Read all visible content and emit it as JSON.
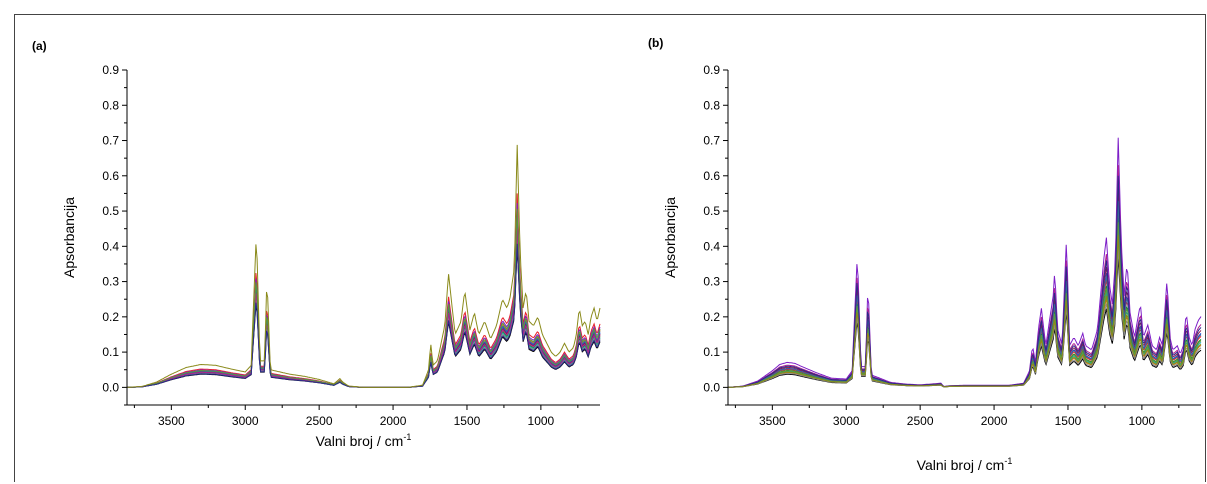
{
  "chart_data": [
    {
      "type": "line",
      "panel_label": "(a)",
      "xlabel": "Valni broj / cm",
      "xlabel_sup": "-1",
      "ylabel": "Apsorbancija",
      "xlim": [
        3800,
        600
      ],
      "ylim": [
        -0.05,
        0.9
      ],
      "x_reversed": true,
      "xticks": [
        3500,
        3000,
        2500,
        2000,
        1500,
        1000
      ],
      "yticks": [
        0.0,
        0.1,
        0.2,
        0.3,
        0.4,
        0.5,
        0.6,
        0.7,
        0.8,
        0.9
      ],
      "ytick_labels": [
        "0.0",
        "0.1",
        "0.2",
        "0.3",
        "0.4",
        "0.5",
        "0.6",
        "0.7",
        "0.8",
        "0.9"
      ],
      "grid": false,
      "legend": "none",
      "series_count": 14,
      "series_colors": [
        "#000000",
        "#e8202a",
        "#1f3fd0",
        "#1a8a2a",
        "#7d1ec8",
        "#1aa7a7",
        "#d07a1a",
        "#8a1a4a",
        "#3a6a9a",
        "#8a8a8a",
        "#b02090",
        "#5a9a3a",
        "#2a2a8a",
        "#8a8a1a"
      ],
      "series_scales": [
        0.72,
        1.0,
        0.86,
        0.8,
        0.95,
        0.78,
        0.9,
        0.84,
        0.88,
        0.76,
        0.82,
        0.92,
        0.74,
        1.25
      ],
      "spectrum": [
        [
          3800,
          0.0
        ],
        [
          3700,
          0.002
        ],
        [
          3600,
          0.012
        ],
        [
          3500,
          0.03
        ],
        [
          3400,
          0.045
        ],
        [
          3300,
          0.052
        ],
        [
          3200,
          0.05
        ],
        [
          3100,
          0.042
        ],
        [
          3000,
          0.035
        ],
        [
          2960,
          0.05
        ],
        [
          2925,
          0.35
        ],
        [
          2900,
          0.06
        ],
        [
          2870,
          0.06
        ],
        [
          2853,
          0.25
        ],
        [
          2830,
          0.04
        ],
        [
          2700,
          0.03
        ],
        [
          2600,
          0.025
        ],
        [
          2500,
          0.018
        ],
        [
          2400,
          0.008
        ],
        [
          2360,
          0.02
        ],
        [
          2340,
          0.012
        ],
        [
          2300,
          0.003
        ],
        [
          2200,
          0.0
        ],
        [
          2000,
          0.0
        ],
        [
          1900,
          0.0
        ],
        [
          1800,
          0.005
        ],
        [
          1760,
          0.04
        ],
        [
          1745,
          0.1
        ],
        [
          1730,
          0.05
        ],
        [
          1700,
          0.06
        ],
        [
          1650,
          0.14
        ],
        [
          1625,
          0.26
        ],
        [
          1600,
          0.18
        ],
        [
          1580,
          0.12
        ],
        [
          1540,
          0.15
        ],
        [
          1515,
          0.22
        ],
        [
          1480,
          0.13
        ],
        [
          1450,
          0.17
        ],
        [
          1420,
          0.12
        ],
        [
          1380,
          0.15
        ],
        [
          1340,
          0.11
        ],
        [
          1300,
          0.14
        ],
        [
          1260,
          0.2
        ],
        [
          1230,
          0.18
        ],
        [
          1210,
          0.2
        ],
        [
          1180,
          0.27
        ],
        [
          1160,
          0.55
        ],
        [
          1140,
          0.3
        ],
        [
          1120,
          0.18
        ],
        [
          1100,
          0.22
        ],
        [
          1080,
          0.15
        ],
        [
          1050,
          0.14
        ],
        [
          1020,
          0.16
        ],
        [
          990,
          0.12
        ],
        [
          960,
          0.1
        ],
        [
          930,
          0.08
        ],
        [
          900,
          0.07
        ],
        [
          870,
          0.08
        ],
        [
          840,
          0.1
        ],
        [
          810,
          0.08
        ],
        [
          780,
          0.09
        ],
        [
          760,
          0.12
        ],
        [
          740,
          0.18
        ],
        [
          720,
          0.14
        ],
        [
          700,
          0.15
        ],
        [
          680,
          0.12
        ],
        [
          660,
          0.16
        ],
        [
          640,
          0.18
        ],
        [
          620,
          0.15
        ],
        [
          600,
          0.18
        ]
      ]
    },
    {
      "type": "line",
      "panel_label": "(b)",
      "xlabel": "Valni broj / cm",
      "xlabel_sup": "-1",
      "ylabel": "Apsorbancija",
      "xlim": [
        3800,
        600
      ],
      "ylim": [
        -0.05,
        0.9
      ],
      "x_reversed": true,
      "xticks": [
        3500,
        3000,
        2500,
        2000,
        1500,
        1000
      ],
      "yticks": [
        0.0,
        0.1,
        0.2,
        0.3,
        0.4,
        0.5,
        0.6,
        0.7,
        0.8,
        0.9
      ],
      "ytick_labels": [
        "0.0",
        "0.1",
        "0.2",
        "0.3",
        "0.4",
        "0.5",
        "0.6",
        "0.7",
        "0.8",
        "0.9"
      ],
      "grid": false,
      "legend": "none",
      "series_count": 14,
      "series_colors": [
        "#000000",
        "#e8202a",
        "#1f3fd0",
        "#1a8a2a",
        "#7d1ec8",
        "#1aa7a7",
        "#d07a1a",
        "#8a1a4a",
        "#3a6a9a",
        "#8a8a8a",
        "#b02090",
        "#5a9a3a",
        "#2a2a8a",
        "#8a8a1a"
      ],
      "series_scales": [
        0.62,
        0.85,
        0.9,
        0.8,
        1.18,
        0.75,
        0.7,
        0.95,
        0.88,
        0.66,
        1.05,
        0.78,
        1.0,
        0.72
      ],
      "spectrum": [
        [
          3800,
          0.0
        ],
        [
          3700,
          0.003
        ],
        [
          3600,
          0.015
        ],
        [
          3500,
          0.04
        ],
        [
          3450,
          0.055
        ],
        [
          3400,
          0.06
        ],
        [
          3350,
          0.058
        ],
        [
          3300,
          0.05
        ],
        [
          3200,
          0.035
        ],
        [
          3100,
          0.022
        ],
        [
          3000,
          0.02
        ],
        [
          2960,
          0.04
        ],
        [
          2925,
          0.32
        ],
        [
          2900,
          0.05
        ],
        [
          2870,
          0.05
        ],
        [
          2853,
          0.25
        ],
        [
          2830,
          0.03
        ],
        [
          2700,
          0.012
        ],
        [
          2600,
          0.008
        ],
        [
          2500,
          0.006
        ],
        [
          2360,
          0.01
        ],
        [
          2340,
          0.002
        ],
        [
          2300,
          0.004
        ],
        [
          2200,
          0.005
        ],
        [
          2000,
          0.005
        ],
        [
          1900,
          0.005
        ],
        [
          1800,
          0.01
        ],
        [
          1760,
          0.04
        ],
        [
          1740,
          0.1
        ],
        [
          1720,
          0.06
        ],
        [
          1700,
          0.14
        ],
        [
          1680,
          0.19
        ],
        [
          1650,
          0.1
        ],
        [
          1600,
          0.22
        ],
        [
          1590,
          0.28
        ],
        [
          1570,
          0.14
        ],
        [
          1540,
          0.1
        ],
        [
          1510,
          0.36
        ],
        [
          1490,
          0.1
        ],
        [
          1460,
          0.12
        ],
        [
          1430,
          0.1
        ],
        [
          1400,
          0.13
        ],
        [
          1380,
          0.1
        ],
        [
          1340,
          0.09
        ],
        [
          1300,
          0.14
        ],
        [
          1260,
          0.3
        ],
        [
          1240,
          0.36
        ],
        [
          1220,
          0.25
        ],
        [
          1200,
          0.2
        ],
        [
          1180,
          0.3
        ],
        [
          1160,
          0.6
        ],
        [
          1140,
          0.35
        ],
        [
          1120,
          0.22
        ],
        [
          1100,
          0.3
        ],
        [
          1080,
          0.18
        ],
        [
          1050,
          0.12
        ],
        [
          1030,
          0.16
        ],
        [
          1010,
          0.2
        ],
        [
          990,
          0.12
        ],
        [
          960,
          0.15
        ],
        [
          930,
          0.1
        ],
        [
          900,
          0.09
        ],
        [
          880,
          0.12
        ],
        [
          860,
          0.1
        ],
        [
          830,
          0.26
        ],
        [
          810,
          0.12
        ],
        [
          790,
          0.09
        ],
        [
          760,
          0.1
        ],
        [
          740,
          0.08
        ],
        [
          720,
          0.1
        ],
        [
          700,
          0.18
        ],
        [
          680,
          0.12
        ],
        [
          660,
          0.1
        ],
        [
          640,
          0.14
        ],
        [
          620,
          0.16
        ],
        [
          600,
          0.17
        ]
      ]
    }
  ]
}
